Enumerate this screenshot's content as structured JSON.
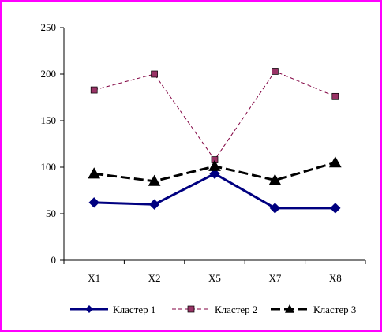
{
  "chart_data": {
    "type": "line",
    "categories": [
      "X1",
      "X2",
      "X5",
      "X7",
      "X8"
    ],
    "ylim": [
      0,
      250
    ],
    "yticks": [
      0,
      50,
      100,
      150,
      200,
      250
    ],
    "grid": false,
    "legend_position": "bottom",
    "title": "",
    "xlabel": "",
    "ylabel": "",
    "series": [
      {
        "name": "Кластер 1",
        "values": [
          62,
          60,
          93,
          56,
          56
        ],
        "color": "#000080",
        "line_style": "solid",
        "marker": "diamond"
      },
      {
        "name": "Кластер 2",
        "values": [
          183,
          200,
          108,
          203,
          176
        ],
        "color": "#800040",
        "marker_color": "#993366",
        "line_style": "dashed",
        "marker": "square"
      },
      {
        "name": "Кластер 3",
        "values": [
          93,
          85,
          101,
          86,
          105
        ],
        "color": "#000000",
        "line_style": "dash",
        "marker": "triangle"
      }
    ]
  },
  "colors": {
    "border": "#ff00ff",
    "axis": "#000000"
  }
}
